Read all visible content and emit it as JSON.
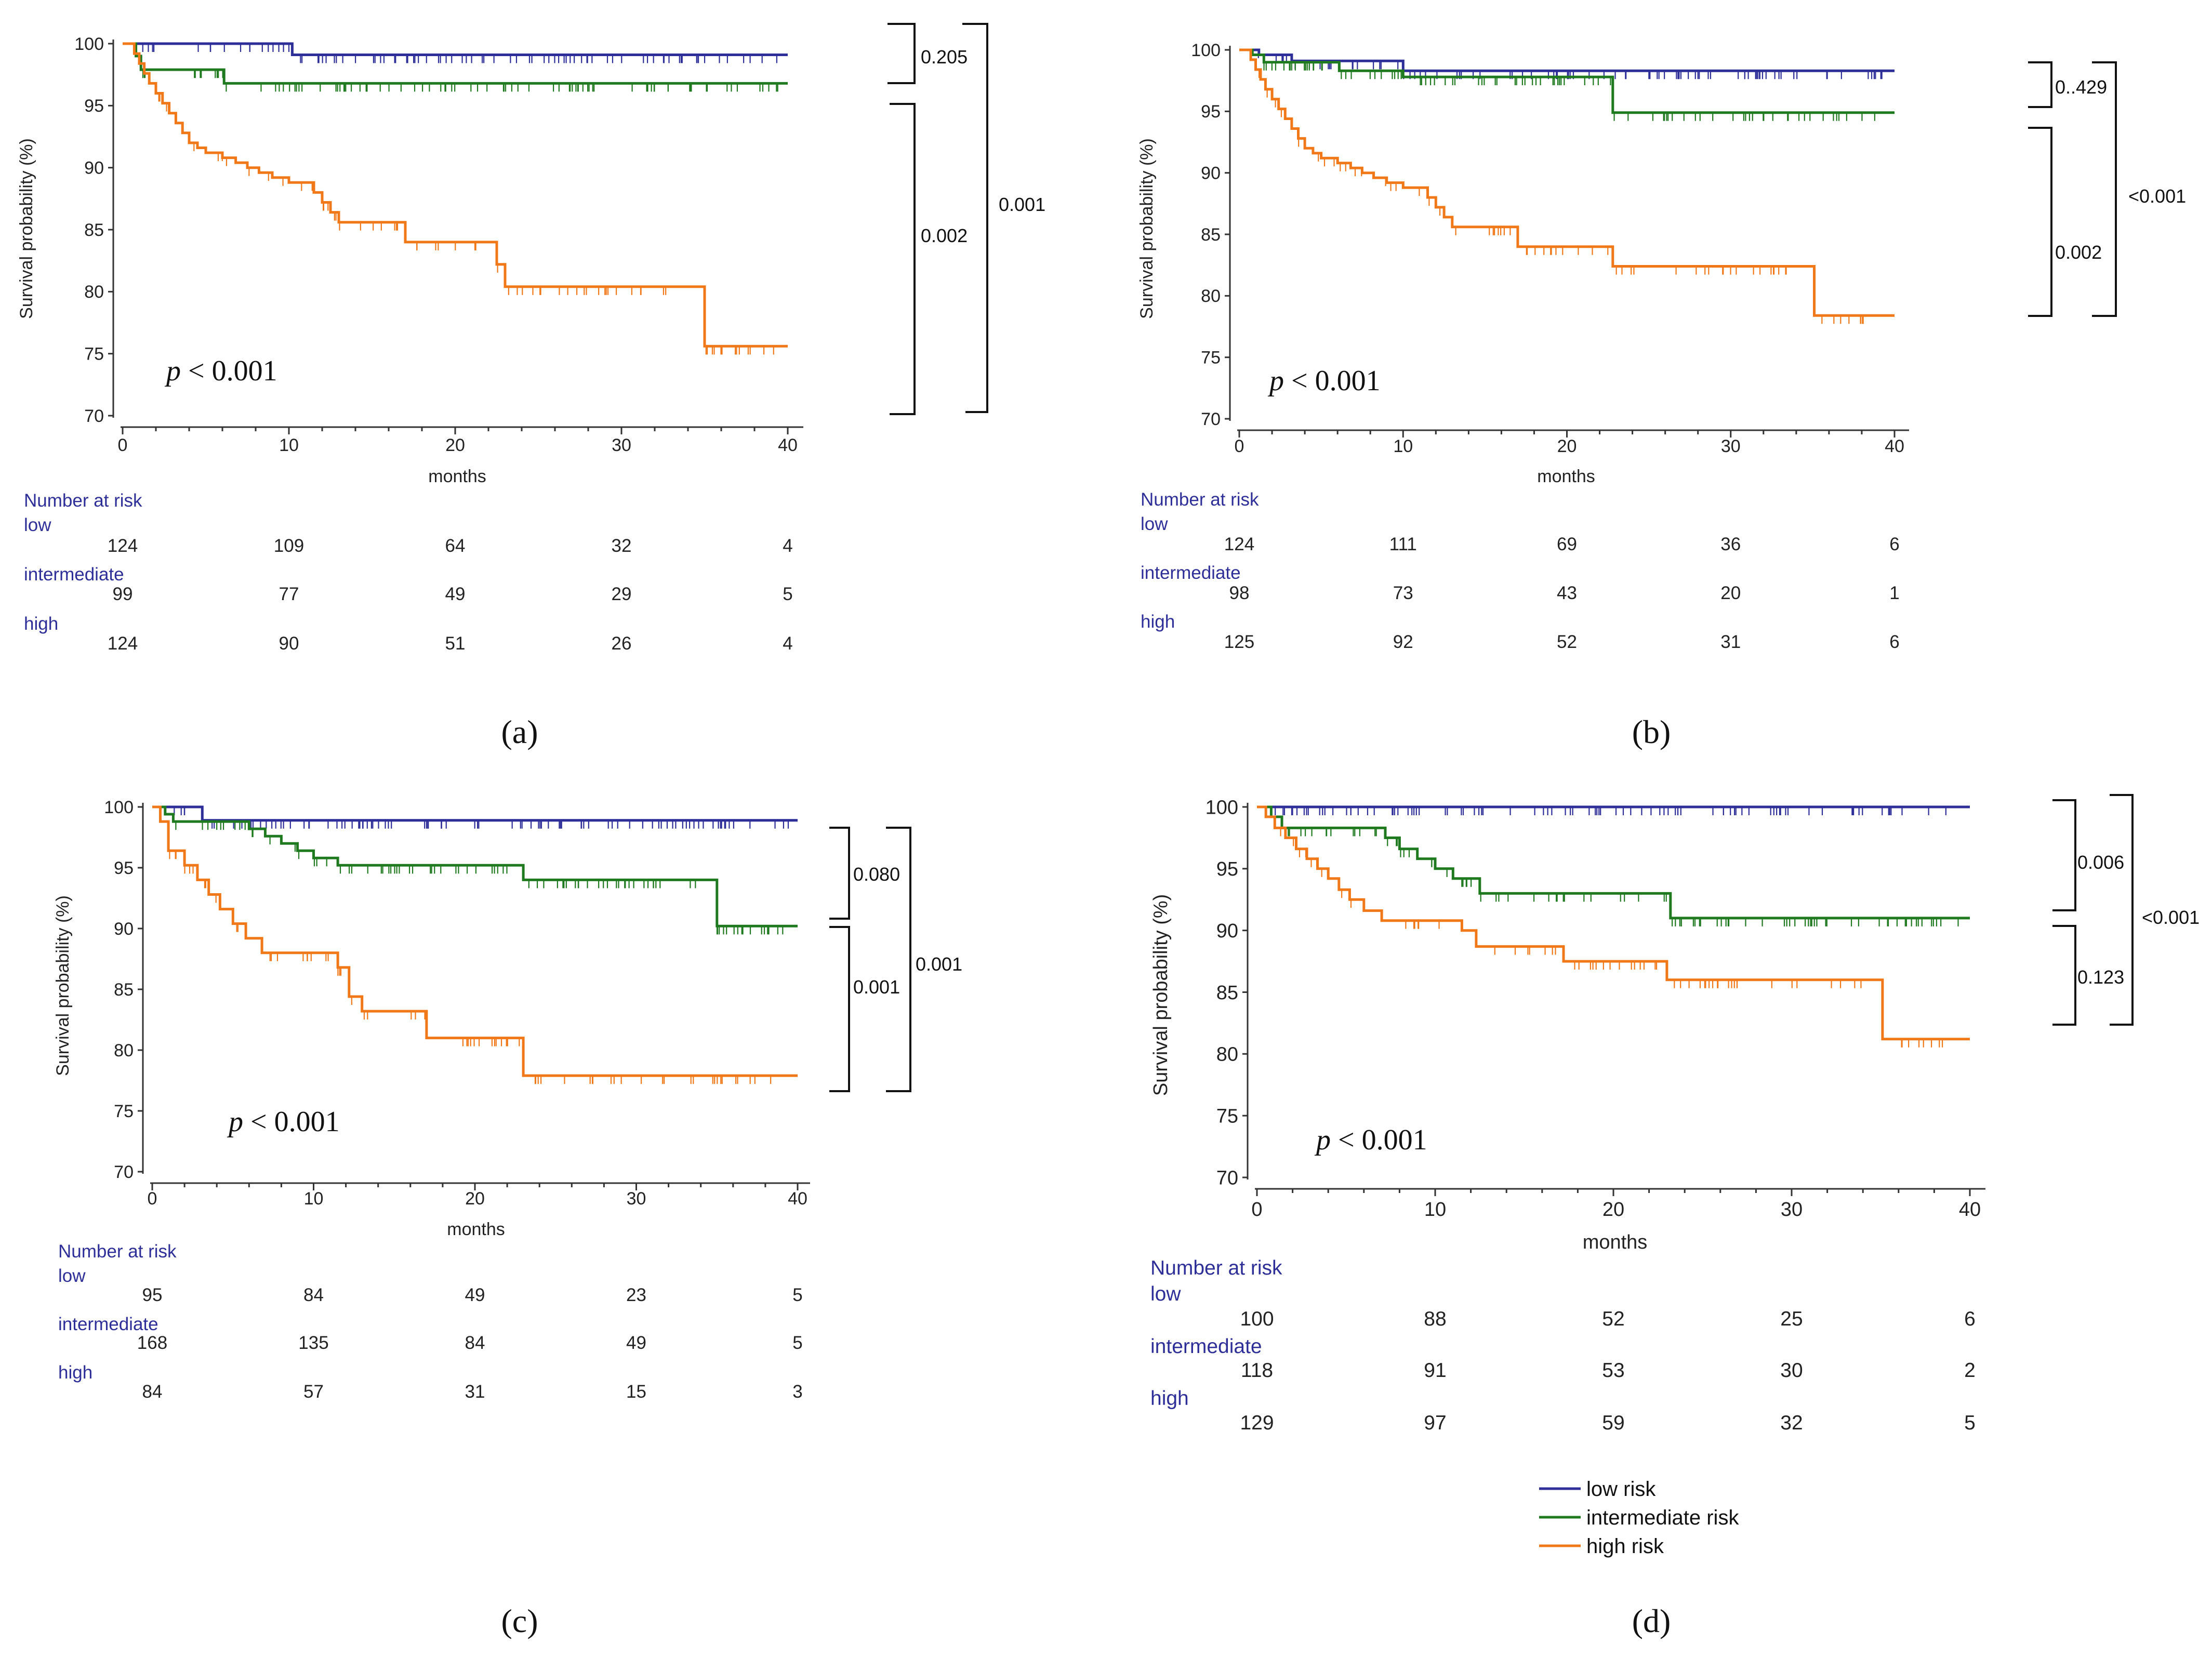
{
  "colors": {
    "low": "#2e2e99",
    "intermediate": "#1f7a1f",
    "high": "#f07818",
    "axis": "#333333"
  },
  "chart_data": [
    {
      "panel": "a",
      "type": "line",
      "subtype": "kaplan-meier",
      "ylabel": "Survival probability (%)",
      "xlabel": "months",
      "xlim": [
        0,
        40
      ],
      "ylim": [
        70,
        100
      ],
      "xticks": [
        0,
        10,
        20,
        30,
        40
      ],
      "yticks": [
        70,
        75,
        80,
        85,
        90,
        95,
        100
      ],
      "p_text": "< 0.001",
      "series": [
        {
          "name": "low",
          "x": [
            0,
            10.2,
            10.2,
            40
          ],
          "y": [
            100,
            100,
            99.1,
            99.1
          ]
        },
        {
          "name": "intermediate",
          "x": [
            0,
            0.8,
            0.8,
            1.1,
            1.1,
            6.1,
            6.1,
            40
          ],
          "y": [
            100,
            100,
            99,
            99,
            97.9,
            97.9,
            96.8,
            96.8
          ]
        },
        {
          "name": "high",
          "x": [
            0,
            0.7,
            1,
            1.3,
            1.6,
            2,
            2.4,
            2.8,
            3.2,
            3.6,
            4,
            4.5,
            5,
            6,
            6.8,
            7.5,
            8.2,
            9,
            10,
            11.5,
            12,
            12.5,
            13,
            17,
            22.5,
            23,
            35,
            40
          ],
          "y": [
            100,
            99.2,
            98.4,
            97.6,
            96.8,
            96.0,
            95.2,
            94.4,
            93.6,
            92.8,
            92.0,
            91.6,
            91.2,
            90.8,
            90.4,
            90.0,
            89.6,
            89.2,
            88.8,
            88.0,
            87.2,
            86.4,
            85.6,
            84.0,
            82.2,
            80.4,
            75.6,
            75.6
          ]
        }
      ],
      "risk_table": {
        "title": "Number at risk",
        "times": [
          0,
          10,
          20,
          30,
          40
        ],
        "rows": [
          {
            "label": "low",
            "values": [
              "124",
              "109",
              "64",
              "32",
              "4"
            ]
          },
          {
            "label": "intermediate",
            "values": [
              "99",
              "77",
              "49",
              "29",
              "5"
            ]
          },
          {
            "label": "high",
            "values": [
              "124",
              "90",
              "51",
              "26",
              "4"
            ]
          }
        ]
      },
      "brackets": [
        {
          "label": "0.205",
          "between": "low vs intermediate"
        },
        {
          "label": "0.002",
          "between": "intermediate vs high"
        },
        {
          "label": "0.001",
          "between": "low vs high"
        }
      ],
      "caption": "(a)"
    },
    {
      "panel": "b",
      "type": "line",
      "subtype": "kaplan-meier",
      "ylabel": "Survival probability (%)",
      "xlabel": "months",
      "xlim": [
        0,
        40
      ],
      "ylim": [
        70,
        100
      ],
      "xticks": [
        0,
        10,
        20,
        30,
        40
      ],
      "yticks": [
        70,
        75,
        80,
        85,
        90,
        95,
        100
      ],
      "p_text": "< 0.001",
      "series": [
        {
          "name": "low",
          "x": [
            0,
            1.2,
            1.2,
            3.2,
            3.2,
            10,
            10,
            40
          ],
          "y": [
            100,
            100,
            99.6,
            99.6,
            99.1,
            99.1,
            98.3,
            98.3
          ]
        },
        {
          "name": "intermediate",
          "x": [
            0,
            0.8,
            0.8,
            1.5,
            1.5,
            6.1,
            6.1,
            10,
            10,
            22.8,
            22.8,
            40
          ],
          "y": [
            100,
            100,
            99.6,
            99.6,
            99.0,
            99.0,
            98.3,
            98.3,
            97.8,
            97.8,
            94.9,
            94.9
          ]
        },
        {
          "name": "high",
          "x": [
            0,
            0.7,
            1,
            1.3,
            1.6,
            2,
            2.4,
            2.8,
            3.2,
            3.6,
            4,
            4.5,
            5,
            6,
            6.8,
            7.5,
            8.2,
            9,
            10,
            11.5,
            12,
            12.5,
            13,
            17,
            22.8,
            35.1,
            40
          ],
          "y": [
            100,
            99.2,
            98.4,
            97.6,
            96.8,
            96.0,
            95.2,
            94.4,
            93.6,
            92.8,
            92.0,
            91.6,
            91.2,
            90.8,
            90.4,
            90.0,
            89.6,
            89.2,
            88.8,
            88.0,
            87.2,
            86.4,
            85.6,
            84.0,
            82.4,
            78.4,
            78.4
          ]
        }
      ],
      "risk_table": {
        "title": "Number at risk",
        "times": [
          0,
          10,
          20,
          30,
          40
        ],
        "rows": [
          {
            "label": "low",
            "values": [
              "124",
              "111",
              "69",
              "36",
              "6"
            ]
          },
          {
            "label": "intermediate",
            "values": [
              "98",
              "73",
              "43",
              "20",
              "1"
            ]
          },
          {
            "label": "high",
            "values": [
              "125",
              "92",
              "52",
              "31",
              "6"
            ]
          }
        ]
      },
      "brackets": [
        {
          "label": "0..429",
          "between": "low vs intermediate"
        },
        {
          "label": "0.002",
          "between": "intermediate vs high"
        },
        {
          "label": "<0.001",
          "between": "low vs high"
        }
      ],
      "caption": "(b)"
    },
    {
      "panel": "c",
      "type": "line",
      "subtype": "kaplan-meier",
      "ylabel": "Survival probability (%)",
      "xlabel": "months",
      "xlim": [
        0,
        40
      ],
      "ylim": [
        70,
        100
      ],
      "xticks": [
        0,
        10,
        20,
        30,
        40
      ],
      "yticks": [
        70,
        75,
        80,
        85,
        90,
        95,
        100
      ],
      "p_text": "< 0.001",
      "series": [
        {
          "name": "low",
          "x": [
            0,
            3.1,
            3.1,
            40
          ],
          "y": [
            100,
            100,
            98.9,
            98.9
          ]
        },
        {
          "name": "intermediate",
          "x": [
            0,
            0.8,
            0.8,
            1.3,
            1.3,
            3.5,
            6,
            7,
            8,
            9,
            10,
            11.5,
            23,
            35,
            40
          ],
          "y": [
            100,
            100,
            99.4,
            99.4,
            98.8,
            98.8,
            98.2,
            97.6,
            97.0,
            96.4,
            95.8,
            95.2,
            94.0,
            90.2,
            90.2
          ]
        },
        {
          "name": "high",
          "x": [
            0,
            0.5,
            1,
            2,
            2.8,
            3.5,
            4.2,
            5,
            5.8,
            6.8,
            11.5,
            12.2,
            13,
            17,
            23,
            40
          ],
          "y": [
            100,
            98.8,
            96.4,
            95.2,
            94.0,
            92.8,
            91.6,
            90.4,
            89.2,
            88.0,
            86.8,
            84.4,
            83.2,
            81.0,
            77.9,
            77.9
          ]
        }
      ],
      "risk_table": {
        "title": "Number at risk",
        "times": [
          0,
          10,
          20,
          30,
          40
        ],
        "rows": [
          {
            "label": "low",
            "values": [
              "95",
              "84",
              "49",
              "23",
              "5"
            ]
          },
          {
            "label": "intermediate",
            "values": [
              "168",
              "135",
              "84",
              "49",
              "5"
            ]
          },
          {
            "label": "high",
            "values": [
              "84",
              "57",
              "31",
              "15",
              "3"
            ]
          }
        ]
      },
      "brackets": [
        {
          "label": "0.080",
          "between": "low vs intermediate"
        },
        {
          "label": "0.001",
          "between": "intermediate vs high"
        },
        {
          "label": "0.001",
          "between": "low vs high"
        }
      ],
      "caption": "(c)"
    },
    {
      "panel": "d",
      "type": "line",
      "subtype": "kaplan-meier",
      "ylabel": "Survival probability (%)",
      "xlabel": "months",
      "xlim": [
        0,
        40
      ],
      "ylim": [
        70,
        100
      ],
      "xticks": [
        0,
        10,
        20,
        30,
        40
      ],
      "yticks": [
        70,
        75,
        80,
        85,
        90,
        95,
        100
      ],
      "p_text": "< 0.001",
      "series": [
        {
          "name": "low",
          "x": [
            0,
            40
          ],
          "y": [
            100,
            100
          ]
        },
        {
          "name": "intermediate",
          "x": [
            0,
            0.8,
            0.8,
            1.4,
            1.4,
            6.5,
            7.2,
            8,
            9,
            10,
            11,
            12.5,
            23.2,
            40
          ],
          "y": [
            100,
            100,
            99.2,
            99.2,
            98.3,
            98.3,
            97.5,
            96.6,
            95.8,
            95.0,
            94.2,
            93.0,
            91.0,
            91.0
          ]
        },
        {
          "name": "high",
          "x": [
            0,
            0.5,
            1,
            1.6,
            2.2,
            2.8,
            3.4,
            4,
            4.6,
            5.2,
            6,
            7,
            11.5,
            12.3,
            17.2,
            23,
            35.1,
            40
          ],
          "y": [
            100,
            99.2,
            98.3,
            97.5,
            96.6,
            95.8,
            95.0,
            94.2,
            93.3,
            92.5,
            91.6,
            90.8,
            90.0,
            88.7,
            87.5,
            86.0,
            81.2,
            81.2
          ]
        }
      ],
      "risk_table": {
        "title": "Number at risk",
        "times": [
          0,
          10,
          20,
          30,
          40
        ],
        "rows": [
          {
            "label": "low",
            "values": [
              "100",
              "88",
              "52",
              "25",
              "6"
            ]
          },
          {
            "label": "intermediate",
            "values": [
              "118",
              "91",
              "53",
              "30",
              "2"
            ]
          },
          {
            "label": "high",
            "values": [
              "129",
              "97",
              "59",
              "32",
              "5"
            ]
          }
        ]
      },
      "brackets": [
        {
          "label": "0.006",
          "between": "low vs intermediate"
        },
        {
          "label": "0.123",
          "between": "intermediate vs high"
        },
        {
          "label": "<0.001",
          "between": "low vs high"
        }
      ],
      "caption": "(d)"
    }
  ],
  "legend": {
    "items": [
      {
        "key": "low",
        "label": "low risk"
      },
      {
        "key": "intermediate",
        "label": "intermediate risk"
      },
      {
        "key": "high",
        "label": "high risk"
      }
    ]
  }
}
